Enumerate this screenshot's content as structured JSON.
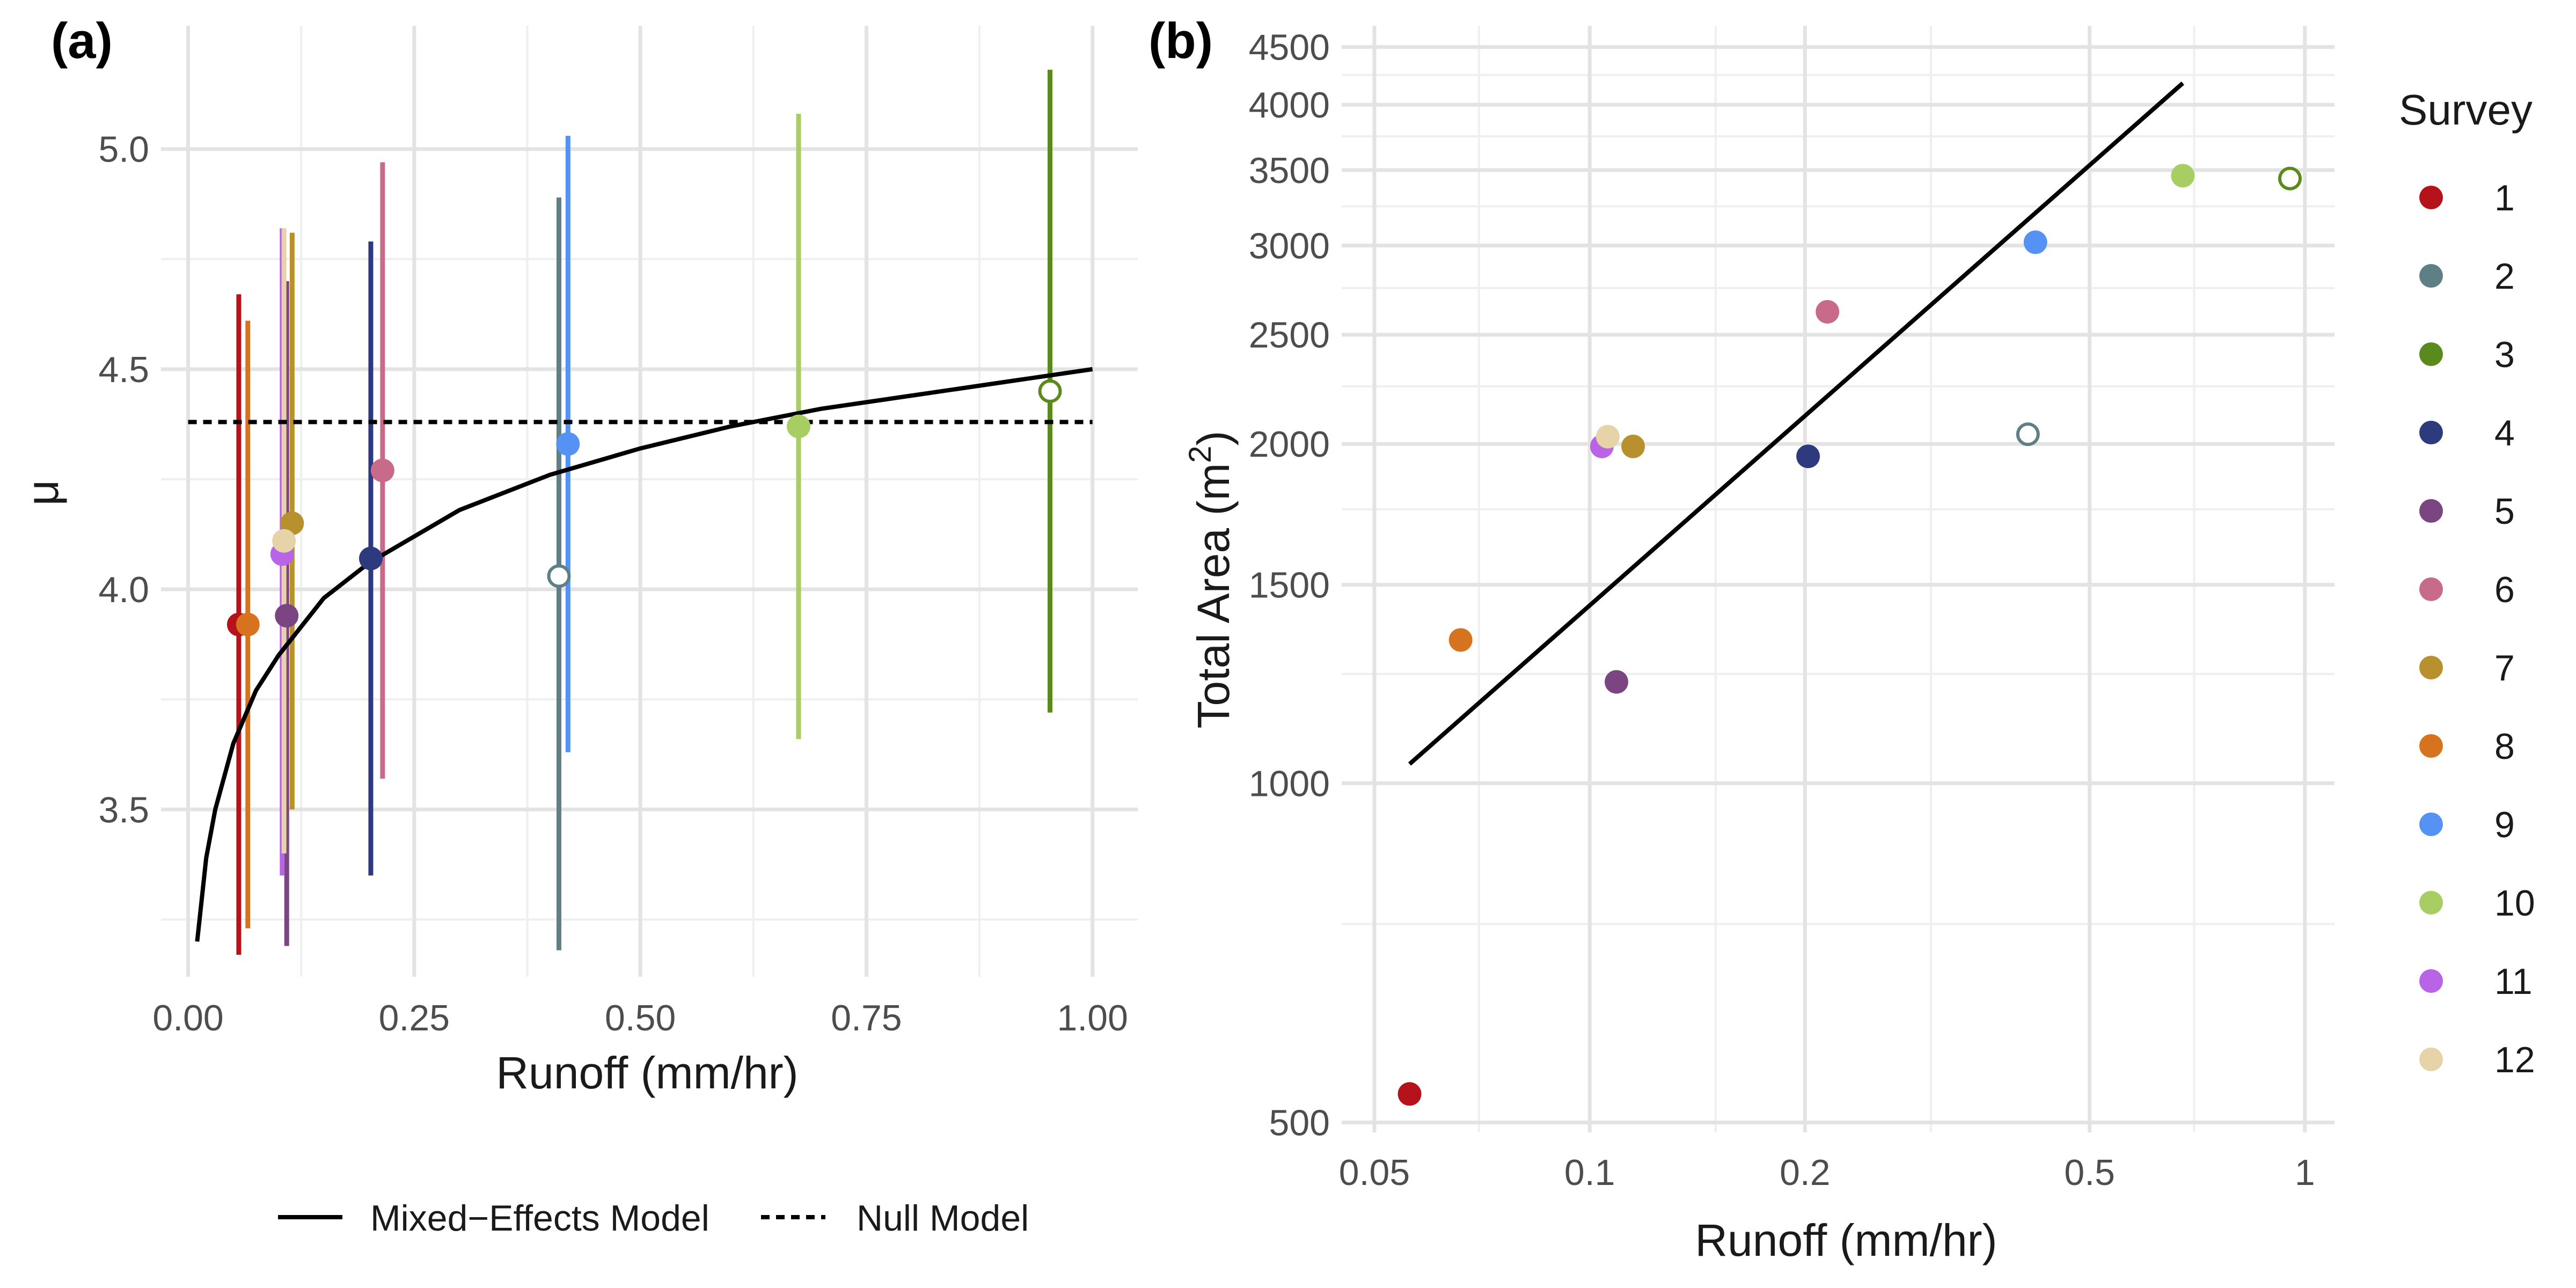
{
  "chart_data": [
    {
      "type": "scatter",
      "panel_label": "(a)",
      "xlabel": "Runoff (mm/hr)",
      "ylabel": "μ",
      "xlim": [
        -0.03,
        1.05
      ],
      "ylim": [
        3.12,
        5.28
      ],
      "x_ticks": [
        0.0,
        0.25,
        0.5,
        0.75,
        1.0
      ],
      "x_tick_labels": [
        "0.00",
        "0.25",
        "0.50",
        "0.75",
        "1.00"
      ],
      "y_ticks": [
        3.5,
        4.0,
        4.5,
        5.0
      ],
      "y_tick_labels": [
        "3.5",
        "4.0",
        "4.5",
        "5.0"
      ],
      "grid": true,
      "points": [
        {
          "survey": "1",
          "x": 0.056,
          "y": 3.92,
          "low": 3.17,
          "high": 4.67,
          "open": false
        },
        {
          "survey": "2",
          "x": 0.41,
          "y": 4.03,
          "low": 3.18,
          "high": 4.89,
          "open": true
        },
        {
          "survey": "3",
          "x": 0.953,
          "y": 4.45,
          "low": 3.72,
          "high": 5.18,
          "open": true
        },
        {
          "survey": "4",
          "x": 0.202,
          "y": 4.07,
          "low": 3.35,
          "high": 4.79,
          "open": false
        },
        {
          "survey": "5",
          "x": 0.109,
          "y": 3.94,
          "low": 3.19,
          "high": 4.7,
          "open": false
        },
        {
          "survey": "6",
          "x": 0.215,
          "y": 4.27,
          "low": 3.57,
          "high": 4.97,
          "open": false
        },
        {
          "survey": "7",
          "x": 0.115,
          "y": 4.15,
          "low": 3.5,
          "high": 4.81,
          "open": false
        },
        {
          "survey": "8",
          "x": 0.066,
          "y": 3.92,
          "low": 3.23,
          "high": 4.61,
          "open": false
        },
        {
          "survey": "9",
          "x": 0.42,
          "y": 4.33,
          "low": 3.63,
          "high": 5.03,
          "open": false
        },
        {
          "survey": "10",
          "x": 0.675,
          "y": 4.37,
          "low": 3.66,
          "high": 5.08,
          "open": false
        },
        {
          "survey": "11",
          "x": 0.104,
          "y": 4.08,
          "low": 3.35,
          "high": 4.82,
          "open": false
        },
        {
          "survey": "12",
          "x": 0.106,
          "y": 4.11,
          "low": 3.4,
          "high": 4.82,
          "open": false
        }
      ],
      "mixed_effects_curve": {
        "x": [
          0.01,
          0.02,
          0.03,
          0.05,
          0.075,
          0.1,
          0.15,
          0.2,
          0.3,
          0.4,
          0.5,
          0.6,
          0.7,
          0.8,
          0.9,
          1.0
        ],
        "y": [
          3.2,
          3.39,
          3.5,
          3.65,
          3.77,
          3.85,
          3.98,
          4.06,
          4.18,
          4.26,
          4.32,
          4.37,
          4.41,
          4.44,
          4.47,
          4.5
        ]
      },
      "null_model_y": 4.38,
      "legend": {
        "position": "bottom",
        "entries": [
          {
            "label": "Mixed−Effects Model",
            "linestyle": "solid"
          },
          {
            "label": "Null Model",
            "linestyle": "dashed"
          }
        ]
      }
    },
    {
      "type": "scatter",
      "panel_label": "(b)",
      "xlabel": "Runoff (mm/hr)",
      "ylabel_main": "Total Area (m",
      "ylabel_sup": "2",
      "ylabel_end": ")",
      "x_scale": "log",
      "y_scale": "log",
      "xlim": [
        0.045,
        1.1
      ],
      "ylim": [
        490,
        4700
      ],
      "x_ticks": [
        0.05,
        0.1,
        0.2,
        0.5,
        1
      ],
      "x_tick_labels": [
        "0.05",
        "0.1",
        "0.2",
        "0.5",
        "1"
      ],
      "y_ticks": [
        500,
        1000,
        1500,
        2000,
        2500,
        3000,
        3500,
        4000,
        4500
      ],
      "y_tick_labels": [
        "500",
        "1000",
        "1500",
        "2000",
        "2500",
        "3000",
        "3500",
        "4000",
        "4500"
      ],
      "grid": true,
      "points": [
        {
          "survey": "1",
          "x": 0.056,
          "y": 530,
          "open": false
        },
        {
          "survey": "2",
          "x": 0.41,
          "y": 2040,
          "open": true
        },
        {
          "survey": "3",
          "x": 0.953,
          "y": 3440,
          "open": true
        },
        {
          "survey": "4",
          "x": 0.202,
          "y": 1950,
          "open": false
        },
        {
          "survey": "5",
          "x": 0.109,
          "y": 1230,
          "open": false
        },
        {
          "survey": "6",
          "x": 0.215,
          "y": 2620,
          "open": false
        },
        {
          "survey": "7",
          "x": 0.115,
          "y": 1990,
          "open": false
        },
        {
          "survey": "8",
          "x": 0.066,
          "y": 1340,
          "open": false
        },
        {
          "survey": "9",
          "x": 0.42,
          "y": 3020,
          "open": false
        },
        {
          "survey": "10",
          "x": 0.675,
          "y": 3460,
          "open": false
        },
        {
          "survey": "11",
          "x": 0.104,
          "y": 1990,
          "open": false
        },
        {
          "survey": "12",
          "x": 0.106,
          "y": 2030,
          "open": false
        }
      ],
      "fit_line": {
        "x": [
          0.056,
          0.675
        ],
        "y": [
          1040,
          4180
        ]
      }
    }
  ],
  "survey_legend": {
    "title": "Survey",
    "entries": [
      {
        "label": "1",
        "color": "#B5121B"
      },
      {
        "label": "2",
        "color": "#5E8085"
      },
      {
        "label": "3",
        "color": "#5A8A1E"
      },
      {
        "label": "4",
        "color": "#2E3A7E"
      },
      {
        "label": "5",
        "color": "#7A4581"
      },
      {
        "label": "6",
        "color": "#C86A8A"
      },
      {
        "label": "7",
        "color": "#B8912E"
      },
      {
        "label": "8",
        "color": "#D7731E"
      },
      {
        "label": "9",
        "color": "#5592F4"
      },
      {
        "label": "10",
        "color": "#A8CD63"
      },
      {
        "label": "11",
        "color": "#B964E6"
      },
      {
        "label": "12",
        "color": "#E6D3A8"
      }
    ]
  }
}
